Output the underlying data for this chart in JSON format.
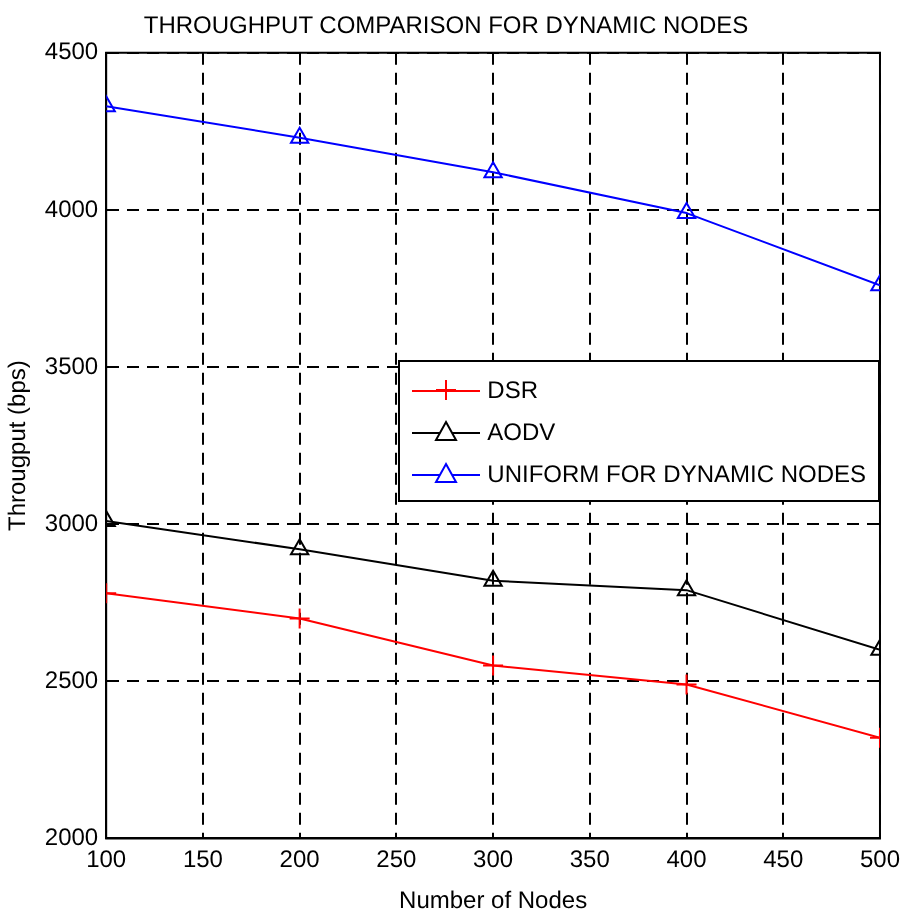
{
  "chart_data": {
    "type": "line",
    "title": "THROUGHPUT COMPARISON FOR DYNAMIC NODES",
    "xlabel": "Number of Nodes",
    "ylabel": "Througput (bps)",
    "x": [
      100,
      200,
      300,
      400,
      500
    ],
    "series": [
      {
        "name": "DSR",
        "color": "#ff0000",
        "marker": "cross",
        "values": [
          2780,
          2700,
          2550,
          2490,
          2320
        ]
      },
      {
        "name": "AODV",
        "color": "#000000",
        "marker": "triangle",
        "values": [
          3010,
          2920,
          2820,
          2790,
          2600
        ]
      },
      {
        "name": "UNIFORM FOR DYNAMIC NODES",
        "color": "#0000ff",
        "marker": "triangle",
        "values": [
          4330,
          4230,
          4120,
          3990,
          3760
        ]
      }
    ],
    "xlim": [
      100,
      500
    ],
    "xticks": [
      100,
      150,
      200,
      250,
      300,
      350,
      400,
      450,
      500
    ],
    "ylim": [
      2000,
      4500
    ],
    "yticks": [
      2000,
      2500,
      3000,
      3500,
      4000,
      4500
    ],
    "grid": true,
    "legend": "right",
    "line_style": "solid"
  }
}
